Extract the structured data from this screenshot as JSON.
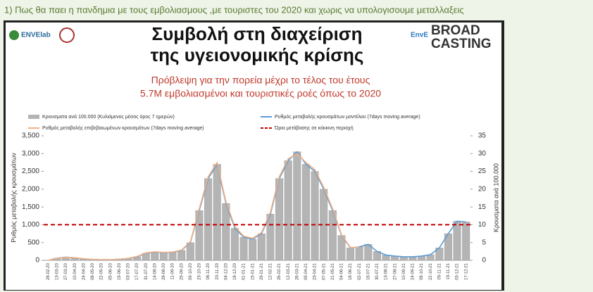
{
  "post_text": "1) Πως θα παει η πανδημια με τους εμβολιασμους ,με τουριστες του 2020 και χωρις να υπολογισουμε μεταλλαξεις",
  "logos": [
    "ENVElab",
    "EnvE",
    "BROAD",
    "CASTING"
  ],
  "chart_data": {
    "type": "bar_line",
    "title": [
      "Συμβολή στη διαχείριση",
      "της υγειονομικής κρίσης"
    ],
    "subtitle": [
      "Πρόβλεψη για την πορεία μέχρι το τέλος του έτους",
      "5.7M εμβολιασμένοι και τουριστικές ροές όπως το 2020"
    ],
    "y_label": "Ρυθμός μεταβολής κρουσμάτων",
    "y2_label": "Κρουσματα ανά 100.000",
    "categories": [
      "28-02-20",
      "13-03-20",
      "27-03-20",
      "10-04-20",
      "24-04-20",
      "08-05-20",
      "22-05-20",
      "05-06-20",
      "19-06-20",
      "03-07-20",
      "17-07-20",
      "31-07-20",
      "14-08-20",
      "28-08-20",
      "11-09-20",
      "25-09-20",
      "09-10-20",
      "23-10-20",
      "06-11-20",
      "20-11-20",
      "04-12-20",
      "18-12-20",
      "01-01-21",
      "15-01-21",
      "29-01-21",
      "12-02-21",
      "26-02-21",
      "12-03-21",
      "26-03-21",
      "09-04-21",
      "23-04-21",
      "07-05-21",
      "21-05-21",
      "04-06-21",
      "18-06-21",
      "02-07-21",
      "16-07-21",
      "30-07-21",
      "13-08-21",
      "27-08-21",
      "10-09-21",
      "24-09-21",
      "08-10-21",
      "22-10-21",
      "05-11-21",
      "19-11-21",
      "03-12-21",
      "17-12-21"
    ],
    "series": [
      {
        "name": "Κρουσματα ανά 100.000 (Κυλιόμενος μέσος όρος 7 ημερών)",
        "color": "#b4b4b4",
        "type": "bar",
        "axis": "y2",
        "values": [
          0,
          0.6,
          0.9,
          0.7,
          0.4,
          0.25,
          0.2,
          0.2,
          0.3,
          0.5,
          1,
          2,
          2.3,
          2.2,
          2.3,
          2.8,
          5,
          14,
          23,
          27,
          16,
          9,
          6.5,
          6,
          7.5,
          13,
          23,
          28,
          30.5,
          27,
          25,
          20,
          14,
          7,
          3.5,
          3.8,
          4.5,
          2.5,
          1.5,
          1.2,
          1,
          1,
          1.2,
          1.6,
          3.5,
          7.5,
          11,
          10.8
        ]
      },
      {
        "name": "Ρυθμός μεταβολής κρουσμάτων μοντέλου (7days moving average)",
        "color": "#5b9bd5",
        "type": "line",
        "values": [
          0,
          60,
          90,
          70,
          40,
          25,
          20,
          20,
          30,
          50,
          100,
          200,
          230,
          220,
          230,
          280,
          500,
          1400,
          2300,
          2700,
          1600,
          900,
          650,
          600,
          750,
          1300,
          2300,
          2800,
          3050,
          2700,
          2500,
          2000,
          1400,
          700,
          350,
          380,
          450,
          250,
          150,
          120,
          100,
          100,
          120,
          160,
          350,
          750,
          1100,
          1080
        ]
      },
      {
        "name": "Ρυθμός μεταβολής επιβεβαιωμένων κρουσμάτων (7days moving average)",
        "color": "#f4b183",
        "type": "line",
        "values": [
          0,
          55,
          85,
          75,
          45,
          28,
          22,
          20,
          32,
          55,
          110,
          210,
          240,
          225,
          235,
          290,
          520,
          1450,
          2350,
          2750,
          1650,
          950,
          680,
          620,
          780,
          1350,
          2350,
          2850,
          3000,
          2750,
          2550,
          2050,
          1450,
          720,
          360,
          370,
          null,
          null,
          null,
          null,
          null,
          null,
          null,
          null,
          null,
          null,
          null,
          null
        ]
      }
    ],
    "threshold": {
      "name": "Όριο μετάβασης σε κόκκινη περιοχή",
      "value": 1000,
      "color": "#c00000"
    },
    "ylim": [
      0,
      3500
    ],
    "yticks": [
      0,
      500,
      {
        "value": 1000,
        "label": "1,000"
      },
      {
        "value": 1500,
        "label": "1,500"
      },
      {
        "value": 2000,
        "label": "2,000"
      },
      {
        "value": 2500,
        "label": "2,500"
      },
      {
        "value": 3000,
        "label": "3,000"
      },
      {
        "value": 3500,
        "label": "3,500"
      }
    ],
    "y2lim": [
      0,
      35
    ],
    "y2ticks": [
      0,
      5,
      10,
      15,
      20,
      25,
      30,
      35
    ],
    "grid": false
  }
}
